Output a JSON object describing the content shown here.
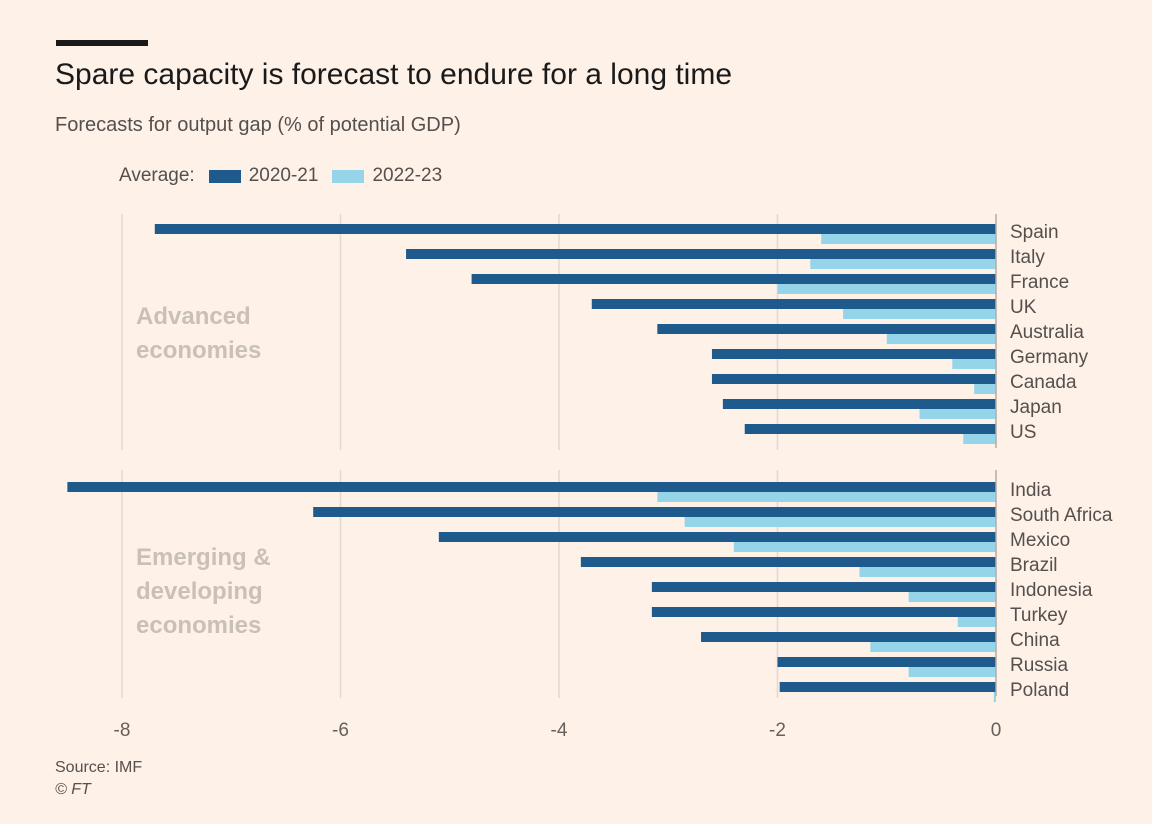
{
  "header": {
    "title": "Spare capacity is forecast to endure for a long time",
    "subtitle": "Forecasts for output gap (% of potential GDP)"
  },
  "legend": {
    "label": "Average:",
    "items": [
      {
        "name": "2020-21",
        "color": "#1f5a8d"
      },
      {
        "name": "2022-23",
        "color": "#96d4e9"
      }
    ]
  },
  "footer": {
    "source": "Source: IMF",
    "credit": "© FT"
  },
  "chart_data": {
    "type": "bar",
    "orientation": "horizontal",
    "xlim": [
      -8.6,
      0
    ],
    "xticks": [
      -8,
      -6,
      -4,
      -2,
      0
    ],
    "grid": true,
    "groups": [
      {
        "label_lines": [
          "Advanced",
          "economies"
        ],
        "categories": [
          "Spain",
          "Italy",
          "France",
          "UK",
          "Australia",
          "Germany",
          "Canada",
          "Japan",
          "US"
        ]
      },
      {
        "label_lines": [
          "Emerging &",
          "developing",
          "economies"
        ],
        "categories": [
          "India",
          "South Africa",
          "Mexico",
          "Brazil",
          "Indonesia",
          "Turkey",
          "China",
          "Russia",
          "Poland"
        ]
      }
    ],
    "series": [
      {
        "name": "2020-21",
        "color": "#1f5a8d",
        "values": [
          -7.7,
          -5.4,
          -4.8,
          -3.7,
          -3.1,
          -2.6,
          -2.6,
          -2.5,
          -2.3,
          -8.5,
          -6.25,
          -5.1,
          -3.8,
          -3.15,
          -3.15,
          -2.7,
          -2.0,
          -1.98
        ]
      },
      {
        "name": "2022-23",
        "color": "#96d4e9",
        "values": [
          -1.6,
          -1.7,
          -2.0,
          -1.4,
          -1.0,
          -0.4,
          -0.2,
          -0.7,
          -0.3,
          -3.1,
          -2.85,
          -2.4,
          -1.25,
          -0.8,
          -0.35,
          -1.15,
          -0.8,
          -0.02
        ]
      }
    ]
  }
}
